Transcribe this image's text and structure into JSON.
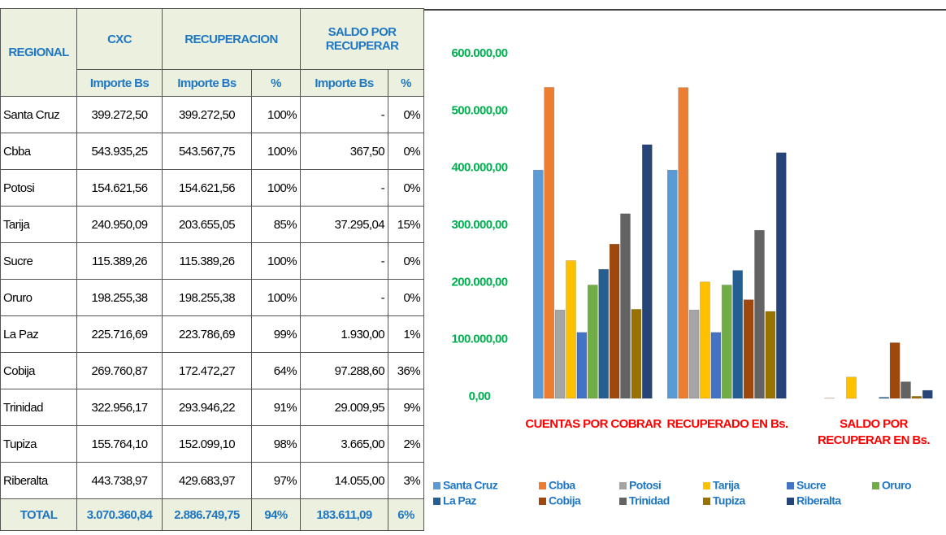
{
  "table": {
    "header": {
      "row1": [
        "REGIONAL",
        "CXC",
        "RECUPERACION",
        "SALDO POR RECUPERAR"
      ],
      "row2": [
        "Importe Bs",
        "Importe Bs",
        "%",
        "Importe Bs",
        "%"
      ]
    },
    "rows": [
      [
        "Santa Cruz",
        "399.272,50",
        "399.272,50",
        "100%",
        "-",
        "0%"
      ],
      [
        "Cbba",
        "543.935,25",
        "543.567,75",
        "100%",
        "367,50",
        "0%"
      ],
      [
        "Potosi",
        "154.621,56",
        "154.621,56",
        "100%",
        "-",
        "0%"
      ],
      [
        "Tarija",
        "240.950,09",
        "203.655,05",
        "85%",
        "37.295,04",
        "15%"
      ],
      [
        "Sucre",
        "115.389,26",
        "115.389,26",
        "100%",
        "-",
        "0%"
      ],
      [
        "Oruro",
        "198.255,38",
        "198.255,38",
        "100%",
        "-",
        "0%"
      ],
      [
        "La Paz",
        "225.716,69",
        "223.786,69",
        "99%",
        "1.930,00",
        "1%"
      ],
      [
        "Cobija",
        "269.760,87",
        "172.472,27",
        "64%",
        "97.288,60",
        "36%"
      ],
      [
        "Trinidad",
        "322.956,17",
        "293.946,22",
        "91%",
        "29.009,95",
        "9%"
      ],
      [
        "Tupiza",
        "155.764,10",
        "152.099,10",
        "98%",
        "3.665,00",
        "2%"
      ],
      [
        "Riberalta",
        "443.738,97",
        "429.683,97",
        "97%",
        "14.055,00",
        "3%"
      ]
    ],
    "total": [
      "TOTAL",
      "3.070.360,84",
      "2.886.749,75",
      "94%",
      "183.611,09",
      "6%"
    ]
  },
  "chart_data": {
    "type": "bar",
    "categories": [
      "CUENTAS POR COBRAR",
      "RECUPERADO EN Bs.",
      "SALDO POR RECUPERAR EN Bs."
    ],
    "ylim": [
      0,
      600000
    ],
    "yticks": [
      {
        "value": 0,
        "label": "0,00"
      },
      {
        "value": 100000,
        "label": "100.000,00"
      },
      {
        "value": 200000,
        "label": "200.000,00"
      },
      {
        "value": 300000,
        "label": "300.000,00"
      },
      {
        "value": 400000,
        "label": "400.000,00"
      },
      {
        "value": 500000,
        "label": "500.000,00"
      },
      {
        "value": 600000,
        "label": "600.000,00"
      }
    ],
    "series": [
      {
        "name": "Santa Cruz",
        "color": "#5b9bd5",
        "values": [
          399272.5,
          399272.5,
          0
        ]
      },
      {
        "name": "Cbba",
        "color": "#ed7d31",
        "values": [
          543935.25,
          543567.75,
          367.5
        ]
      },
      {
        "name": "Potosi",
        "color": "#a5a5a5",
        "values": [
          154621.56,
          154621.56,
          0
        ]
      },
      {
        "name": "Tarija",
        "color": "#ffc000",
        "values": [
          240950.09,
          203655.05,
          37295.04
        ]
      },
      {
        "name": "Sucre",
        "color": "#4472c4",
        "values": [
          115389.26,
          115389.26,
          0
        ]
      },
      {
        "name": "Oruro",
        "color": "#70ad47",
        "values": [
          198255.38,
          198255.38,
          0
        ]
      },
      {
        "name": "La Paz",
        "color": "#255e91",
        "values": [
          225716.69,
          223786.69,
          1930.0
        ]
      },
      {
        "name": "Cobija",
        "color": "#9e480e",
        "values": [
          269760.87,
          172472.27,
          97288.6
        ]
      },
      {
        "name": "Trinidad",
        "color": "#636363",
        "values": [
          322956.17,
          293946.22,
          29009.95
        ]
      },
      {
        "name": "Tupiza",
        "color": "#997300",
        "values": [
          155764.1,
          152099.1,
          3665.0
        ]
      },
      {
        "name": "Riberalta",
        "color": "#264478",
        "values": [
          443738.97,
          429683.97,
          14055.0
        ]
      }
    ]
  }
}
